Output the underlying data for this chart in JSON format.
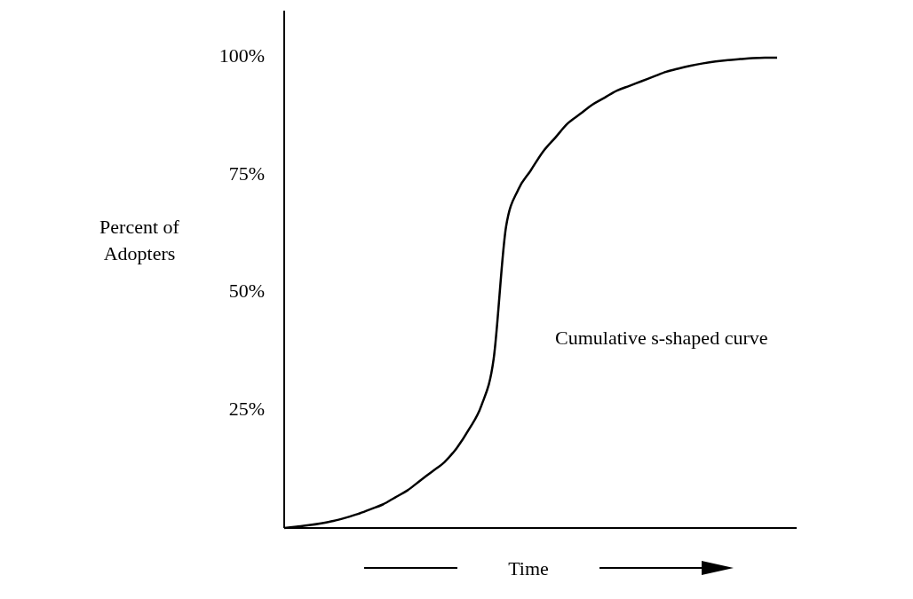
{
  "chart_data": {
    "type": "line",
    "xlabel": "Time",
    "ylabel": "Percent of Adopters",
    "annotations": [
      "Cumulative s-shaped curve"
    ],
    "categories": [
      null,
      null,
      null,
      null,
      null,
      null,
      null,
      null,
      null,
      null,
      null,
      null,
      null,
      null,
      null,
      null,
      null,
      null,
      null,
      null,
      null,
      null,
      null,
      null,
      null,
      null,
      null,
      null,
      null,
      null,
      null,
      null,
      null,
      null,
      null,
      null,
      null,
      null,
      null,
      null,
      null
    ],
    "series": [
      {
        "color": "#000000",
        "values": [
          0,
          0.3,
          0.6,
          1,
          1.5,
          2.2,
          3,
          4,
          5,
          6.5,
          8,
          10,
          12,
          14,
          17,
          21,
          26,
          36,
          64,
          72,
          76,
          80,
          83,
          86,
          88,
          90,
          91.5,
          93,
          94,
          95,
          96,
          97,
          97.7,
          98.3,
          98.8,
          99.2,
          99.5,
          99.7,
          99.9,
          100,
          100
        ]
      }
    ],
    "ylim": [
      0,
      110
    ],
    "yticks": [
      {
        "value": 25,
        "label": "25%"
      },
      {
        "value": 50,
        "label": "50%"
      },
      {
        "value": 75,
        "label": "75%"
      },
      {
        "value": 100,
        "label": "100%"
      }
    ],
    "grid": false,
    "marker": "none",
    "line_style": "solid",
    "tick_labels": "y"
  }
}
